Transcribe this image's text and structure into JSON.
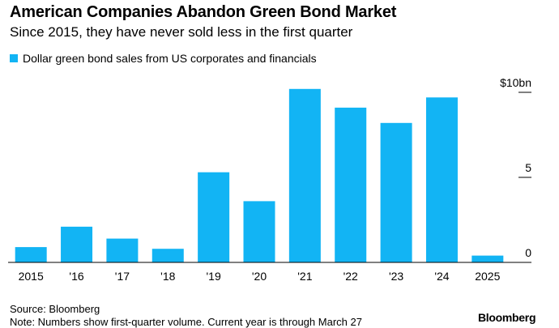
{
  "title": "American Companies Abandon Green Bond Market",
  "subtitle": "Since 2015, they have never sold less in the first quarter",
  "legend": {
    "label": "Dollar green bond sales from US corporates and financials",
    "color": "#12B4F4"
  },
  "source": "Source: Bloomberg",
  "note": "Note: Numbers show first-quarter volume. Current year is through March 27",
  "brand": "Bloomberg",
  "chart_data": {
    "type": "bar",
    "categories": [
      "2015",
      "'16",
      "'17",
      "'18",
      "'19",
      "'20",
      "'21",
      "'22",
      "'23",
      "'24",
      "2025"
    ],
    "series": [
      {
        "name": "Dollar green bond sales from US corporates and financials",
        "values": [
          0.9,
          2.1,
          1.4,
          0.8,
          5.3,
          3.6,
          10.2,
          9.1,
          8.2,
          9.7,
          0.4
        ],
        "color": "#12B4F4"
      }
    ],
    "ylim": [
      0,
      11
    ],
    "yticks": [
      0,
      5,
      10
    ],
    "ytick_labels": [
      "0",
      "5",
      "$10bn"
    ],
    "grid": false,
    "legend_position": "top-left"
  }
}
